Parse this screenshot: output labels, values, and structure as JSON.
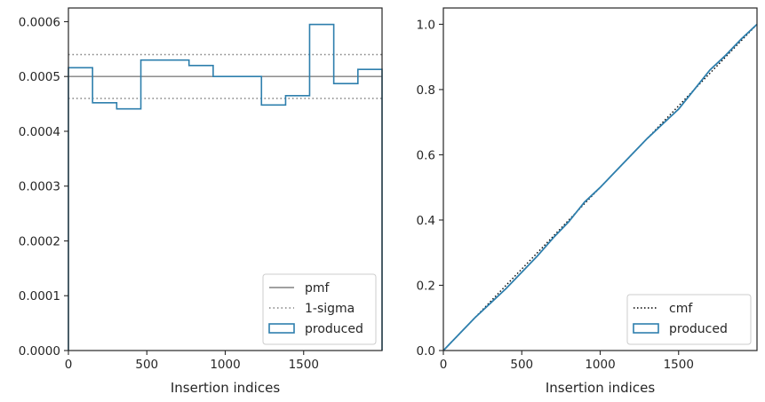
{
  "colors": {
    "produced": "#2e7fad",
    "reference": "#808080",
    "cmf": "#000000",
    "axes": "#262626",
    "text": "#262626",
    "legend_border": "#cccccc"
  },
  "chart_data": [
    {
      "type": "line",
      "subtype": "step-histogram",
      "title": "",
      "xlabel": "Insertion indices",
      "ylabel": "",
      "xlim": [
        0,
        2000
      ],
      "ylim": [
        0,
        0.000625
      ],
      "xticks": [
        0,
        500,
        1000,
        1500
      ],
      "xtick_labels": [
        "0",
        "500",
        "1000",
        "1500"
      ],
      "yticks": [
        0,
        0.0001,
        0.0002,
        0.0003,
        0.0004,
        0.0005,
        0.0006
      ],
      "ytick_labels": [
        "0.0000",
        "0.0001",
        "0.0002",
        "0.0003",
        "0.0004",
        "0.0005",
        "0.0006"
      ],
      "grid": false,
      "legend_position": "bottom-right",
      "reference_lines": [
        {
          "name": "pmf",
          "value": 0.0005,
          "style": "solid"
        },
        {
          "name": "1-sigma",
          "values": [
            0.00046,
            0.00054
          ],
          "style": "dotted"
        }
      ],
      "series": [
        {
          "name": "produced",
          "bin_edges": [
            0,
            154,
            308,
            462,
            615,
            769,
            923,
            1077,
            1231,
            1385,
            1538,
            1692,
            1846,
            2000
          ],
          "values": [
            0.000516,
            0.000452,
            0.000441,
            0.00053,
            0.00053,
            0.00052,
            0.0005,
            0.0005,
            0.000448,
            0.000465,
            0.000595,
            0.000487,
            0.000513
          ]
        }
      ],
      "legend": {
        "items": [
          "pmf",
          "1-sigma",
          "produced"
        ]
      }
    },
    {
      "type": "line",
      "title": "",
      "xlabel": "Insertion indices",
      "ylabel": "",
      "xlim": [
        0,
        2000
      ],
      "ylim": [
        0,
        1.05
      ],
      "xticks": [
        0,
        500,
        1000,
        1500
      ],
      "xtick_labels": [
        "0",
        "500",
        "1000",
        "1500"
      ],
      "yticks": [
        0,
        0.2,
        0.4,
        0.6,
        0.8,
        1.0
      ],
      "ytick_labels": [
        "0.0",
        "0.2",
        "0.4",
        "0.6",
        "0.8",
        "1.0"
      ],
      "grid": false,
      "legend_position": "bottom-right",
      "series": [
        {
          "name": "cmf",
          "style": "dotted",
          "x": [
            0,
            2000
          ],
          "y": [
            0,
            1.0
          ]
        },
        {
          "name": "produced",
          "style": "solid",
          "x": [
            0,
            100,
            200,
            300,
            400,
            500,
            600,
            700,
            800,
            900,
            1000,
            1100,
            1200,
            1300,
            1400,
            1500,
            1600,
            1700,
            1800,
            1900,
            2000
          ],
          "y": [
            0,
            0.05,
            0.1,
            0.145,
            0.19,
            0.24,
            0.29,
            0.345,
            0.395,
            0.455,
            0.5,
            0.55,
            0.6,
            0.65,
            0.695,
            0.74,
            0.8,
            0.86,
            0.905,
            0.955,
            1.0
          ]
        }
      ],
      "legend": {
        "items": [
          "cmf",
          "produced"
        ]
      }
    }
  ]
}
